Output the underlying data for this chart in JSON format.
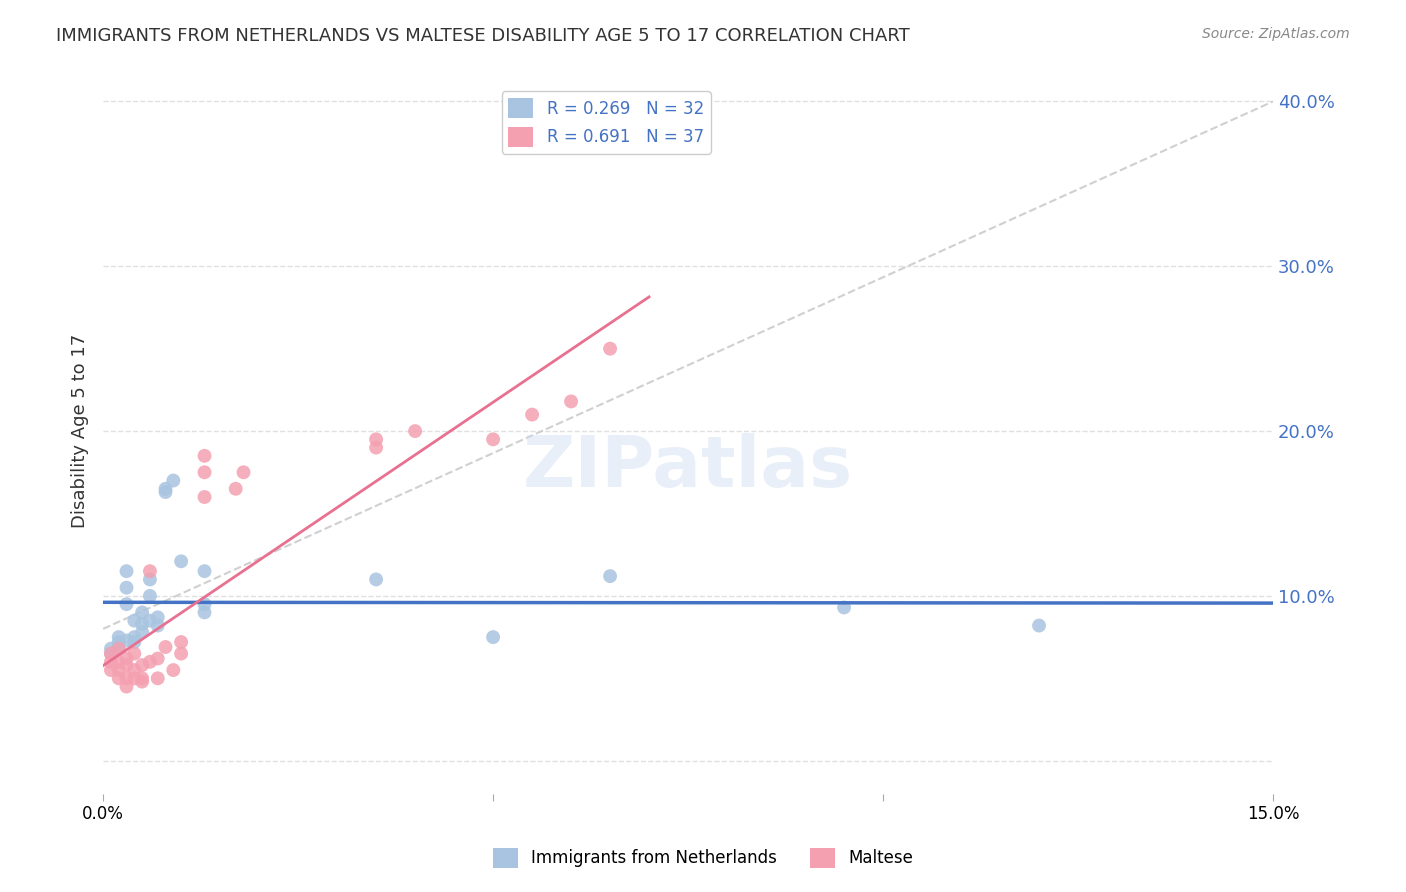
{
  "title": "IMMIGRANTS FROM NETHERLANDS VS MALTESE DISABILITY AGE 5 TO 17 CORRELATION CHART",
  "source": "Source: ZipAtlas.com",
  "xlabel_bottom": "",
  "ylabel": "Disability Age 5 to 17",
  "xlim": [
    0.0,
    0.15
  ],
  "ylim": [
    -0.02,
    0.42
  ],
  "xticks": [
    0.0,
    0.05,
    0.1,
    0.15
  ],
  "yticks": [
    0.0,
    0.1,
    0.2,
    0.3,
    0.4
  ],
  "ytick_labels": [
    "",
    "10.0%",
    "20.0%",
    "30.0%",
    "40.0%"
  ],
  "xtick_labels": [
    "0.0%",
    "",
    "",
    "15.0%"
  ],
  "netherlands_R": 0.269,
  "netherlands_N": 32,
  "maltese_R": 0.691,
  "maltese_N": 37,
  "netherlands_color": "#a8c4e0",
  "maltese_color": "#f4a0b0",
  "netherlands_line_color": "#4472c4",
  "maltese_line_color": "#e87090",
  "diagonal_line_color": "#d0d0d0",
  "background_color": "#ffffff",
  "grid_color": "#e0e0e0",
  "legend_label_netherlands": "Immigrants from Netherlands",
  "legend_label_maltese": "Maltese",
  "netherlands_x": [
    0.001,
    0.001,
    0.002,
    0.002,
    0.002,
    0.003,
    0.003,
    0.003,
    0.003,
    0.004,
    0.004,
    0.004,
    0.005,
    0.005,
    0.005,
    0.006,
    0.006,
    0.006,
    0.007,
    0.007,
    0.008,
    0.008,
    0.009,
    0.01,
    0.013,
    0.013,
    0.013,
    0.035,
    0.05,
    0.065,
    0.095,
    0.12
  ],
  "netherlands_y": [
    0.065,
    0.068,
    0.072,
    0.075,
    0.068,
    0.073,
    0.095,
    0.105,
    0.115,
    0.072,
    0.075,
    0.085,
    0.078,
    0.083,
    0.09,
    0.085,
    0.1,
    0.11,
    0.082,
    0.087,
    0.163,
    0.165,
    0.17,
    0.121,
    0.09,
    0.095,
    0.115,
    0.11,
    0.075,
    0.112,
    0.093,
    0.082
  ],
  "maltese_x": [
    0.001,
    0.001,
    0.001,
    0.002,
    0.002,
    0.002,
    0.002,
    0.003,
    0.003,
    0.003,
    0.003,
    0.004,
    0.004,
    0.004,
    0.005,
    0.005,
    0.005,
    0.006,
    0.006,
    0.007,
    0.007,
    0.008,
    0.009,
    0.01,
    0.01,
    0.013,
    0.013,
    0.013,
    0.017,
    0.018,
    0.035,
    0.035,
    0.04,
    0.05,
    0.055,
    0.06,
    0.065
  ],
  "maltese_y": [
    0.055,
    0.06,
    0.065,
    0.05,
    0.055,
    0.06,
    0.068,
    0.045,
    0.05,
    0.058,
    0.062,
    0.05,
    0.055,
    0.065,
    0.048,
    0.05,
    0.058,
    0.06,
    0.115,
    0.05,
    0.062,
    0.069,
    0.055,
    0.065,
    0.072,
    0.16,
    0.175,
    0.185,
    0.165,
    0.175,
    0.19,
    0.195,
    0.2,
    0.195,
    0.21,
    0.218,
    0.25
  ],
  "watermark": "ZIPatlas",
  "marker_size": 100
}
